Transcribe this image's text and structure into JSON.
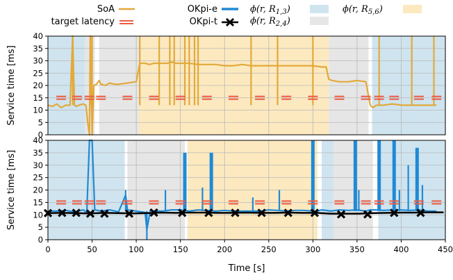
{
  "chart_data": [
    {
      "type": "line",
      "panel": "top",
      "ylabel": "Service time [ms]",
      "ylim": [
        0,
        40
      ],
      "xlim": [
        0,
        450
      ],
      "yticks": [
        0,
        5,
        10,
        15,
        20,
        25,
        30,
        35,
        40
      ],
      "grid": true,
      "regions": [
        {
          "name": "phi13",
          "ranges": [
            [
              0,
              42
            ],
            [
              130,
              145
            ],
            [
              367,
              450
            ]
          ],
          "color": "#cfe4ef"
        },
        {
          "name": "phi24",
          "ranges": [
            [
              42,
              53
            ],
            [
              58,
              103
            ],
            [
              318,
              363
            ]
          ],
          "color": "#e6e6e6"
        },
        {
          "name": "phi56",
          "ranges": [
            [
              103,
              318
            ]
          ],
          "color": "#fce9bf"
        }
      ],
      "series": [
        {
          "name": "SoA",
          "color": "#e2a93b",
          "x": [
            0,
            5,
            10,
            15,
            20,
            25,
            28,
            30,
            32,
            35,
            40,
            43,
            45,
            47,
            48,
            50,
            52,
            55,
            58,
            60,
            65,
            70,
            75,
            80,
            90,
            100,
            104,
            110,
            115,
            120,
            125,
            130,
            135,
            140,
            145,
            150,
            160,
            170,
            180,
            190,
            200,
            210,
            220,
            230,
            240,
            250,
            260,
            270,
            280,
            290,
            300,
            310,
            315,
            318,
            322,
            330,
            340,
            350,
            360,
            365,
            368,
            372,
            380,
            390,
            400,
            410,
            420,
            430,
            440
          ],
          "y": [
            12,
            11.5,
            12.5,
            11,
            12,
            12,
            40,
            12,
            11.5,
            12,
            12.5,
            12,
            5,
            0,
            40,
            0,
            20,
            20.5,
            22,
            20.5,
            20,
            21,
            20.5,
            20.5,
            21,
            21.5,
            29,
            29,
            28.5,
            29,
            29,
            29,
            29,
            29.5,
            29,
            29,
            29,
            28.5,
            28.5,
            28.5,
            28,
            28,
            28.5,
            28,
            28,
            28,
            28,
            28,
            28,
            28,
            28,
            27.5,
            27.5,
            22.5,
            22,
            21.5,
            21.5,
            22,
            21.5,
            12,
            11,
            12,
            12,
            12.5,
            12,
            12,
            12,
            12,
            12
          ]
        },
        {
          "name": "target latency",
          "color": "#ee5a42",
          "x": [
            15,
            33,
            47,
            60,
            90,
            120,
            150,
            180,
            210,
            240,
            270,
            300,
            330,
            360,
            375,
            392,
            420,
            440
          ],
          "y": [
            15,
            15,
            15,
            15,
            15,
            15,
            15,
            15,
            15,
            15,
            15,
            15,
            15,
            15,
            15,
            15,
            15,
            15
          ]
        }
      ],
      "spikes": [
        {
          "x": 28,
          "y": 40
        },
        {
          "x": 48,
          "y": 40
        },
        {
          "x": 50,
          "y": 40
        },
        {
          "x": 104,
          "y": 40
        },
        {
          "x": 126,
          "y": 40
        },
        {
          "x": 138,
          "y": 40
        },
        {
          "x": 143,
          "y": 40
        },
        {
          "x": 155,
          "y": 40
        },
        {
          "x": 160,
          "y": 40
        },
        {
          "x": 166,
          "y": 40
        },
        {
          "x": 170,
          "y": 40
        },
        {
          "x": 230,
          "y": 40
        },
        {
          "x": 260,
          "y": 40
        },
        {
          "x": 300,
          "y": 40
        },
        {
          "x": 375,
          "y": 40
        },
        {
          "x": 412,
          "y": 40
        },
        {
          "x": 437,
          "y": 40
        }
      ]
    },
    {
      "type": "line",
      "panel": "bottom",
      "xlabel": "Time [s]",
      "ylabel": "Service time [ms]",
      "ylim": [
        0,
        40
      ],
      "xlim": [
        0,
        450
      ],
      "yticks": [
        0,
        5,
        10,
        15,
        20,
        25,
        30,
        35,
        40
      ],
      "xticks": [
        0,
        50,
        100,
        150,
        200,
        250,
        300,
        350,
        400,
        450
      ],
      "grid": true,
      "regions": [
        {
          "name": "phi13",
          "ranges": [
            [
              0,
              87
            ],
            [
              310,
              323
            ],
            [
              374,
              450
            ]
          ],
          "color": "#cfe4ef"
        },
        {
          "name": "phi24",
          "ranges": [
            [
              90,
              155
            ],
            [
              323,
              368
            ]
          ],
          "color": "#e6e6e6"
        },
        {
          "name": "phi56",
          "ranges": [
            [
              158,
              305
            ]
          ],
          "color": "#fce9bf"
        }
      ],
      "series": [
        {
          "name": "OKpi-e",
          "color": "#1f8ad6",
          "x": [
            0,
            10,
            20,
            30,
            40,
            44,
            47,
            50,
            53,
            60,
            70,
            80,
            88,
            90,
            100,
            110,
            112,
            116,
            120,
            130,
            140,
            150,
            160,
            170,
            180,
            190,
            200,
            210,
            220,
            230,
            240,
            250,
            260,
            270,
            280,
            290,
            300,
            305,
            310,
            315,
            320,
            330,
            340,
            350,
            360,
            365,
            370,
            380,
            390,
            400,
            410,
            420,
            430,
            440
          ],
          "y": [
            11.5,
            11.5,
            11.8,
            11.2,
            12,
            11,
            40,
            40,
            12,
            11.5,
            12,
            11.2,
            18,
            12,
            11.5,
            11,
            4,
            12,
            11.5,
            11.5,
            12,
            12,
            11.5,
            12,
            11.8,
            11.5,
            11.8,
            11.5,
            11.5,
            11.5,
            11.5,
            12,
            11.8,
            11.5,
            11.8,
            11.8,
            11.5,
            11.5,
            12,
            11.8,
            11.5,
            12,
            11.8,
            12,
            11.5,
            12,
            12,
            11.8,
            12,
            12,
            11.8,
            12,
            11.5,
            11.5
          ]
        },
        {
          "name": "OKpi-t",
          "color": "#000000",
          "x": [
            0,
            16,
            32,
            48,
            64,
            80,
            96,
            112,
            128,
            144,
            160,
            176,
            192,
            208,
            224,
            240,
            256,
            272,
            288,
            304,
            320,
            336,
            352,
            368,
            384,
            400,
            416,
            432,
            448
          ],
          "y": [
            10.7,
            10.8,
            10.7,
            10.6,
            10.8,
            10.7,
            10.6,
            10.7,
            10.9,
            10.8,
            10.9,
            10.9,
            10.8,
            10.8,
            10.9,
            10.8,
            10.8,
            10.9,
            10.8,
            10.8,
            10.5,
            10.5,
            10.5,
            10.7,
            10.8,
            10.9,
            10.9,
            11,
            11
          ]
        },
        {
          "name": "target latency",
          "color": "#ee5a42",
          "x": [
            15,
            33,
            47,
            60,
            90,
            120,
            150,
            180,
            210,
            240,
            270,
            300,
            330,
            360,
            375,
            392,
            420,
            440
          ],
          "y": [
            15,
            15,
            15,
            15,
            15,
            15,
            15,
            15,
            15,
            15,
            15,
            15,
            15,
            15,
            15,
            15,
            15,
            15
          ]
        }
      ],
      "markers_x": [
        0,
        16,
        32,
        48,
        64,
        92,
        120,
        152,
        182,
        212,
        242,
        272,
        302,
        332,
        362,
        392,
        422
      ],
      "markers_y": [
        10.7,
        10.8,
        10.8,
        10.5,
        10.5,
        10.5,
        10.9,
        10.8,
        10.8,
        10.8,
        10.8,
        10.8,
        10.8,
        10.2,
        10.2,
        10.8,
        10.8
      ],
      "spikes": [
        {
          "x": 88,
          "y": 20
        },
        {
          "x": 112,
          "y": 0
        },
        {
          "x": 133,
          "y": 20
        },
        {
          "x": 155,
          "y": 35
        },
        {
          "x": 175,
          "y": 21
        },
        {
          "x": 185,
          "y": 35
        },
        {
          "x": 232,
          "y": 17
        },
        {
          "x": 262,
          "y": 20
        },
        {
          "x": 300,
          "y": 40
        },
        {
          "x": 348,
          "y": 40
        },
        {
          "x": 352,
          "y": 20
        },
        {
          "x": 375,
          "y": 40
        },
        {
          "x": 392,
          "y": 40
        },
        {
          "x": 398,
          "y": 20
        },
        {
          "x": 408,
          "y": 30
        },
        {
          "x": 418,
          "y": 37
        },
        {
          "x": 424,
          "y": 22
        }
      ]
    }
  ],
  "legend": {
    "soa": "SoA",
    "target": "target latency",
    "okpi_e": "OKpi-e",
    "okpi_t": "OKpi-t",
    "phi13_base": "ϕ(r, R",
    "phi13_sub": "1,3",
    "phi24_base": "ϕ(r, R",
    "phi24_sub": "2,4",
    "phi56_base": "ϕ(r, R",
    "phi56_sub": "5,6",
    "close": ")"
  },
  "colors": {
    "soa": "#e2a93b",
    "target": "#ee5a42",
    "okpi_e": "#1f8ad6",
    "okpi_t": "#000000",
    "phi13": "#cfe4ef",
    "phi24": "#e6e6e6",
    "phi56": "#fce9bf"
  }
}
